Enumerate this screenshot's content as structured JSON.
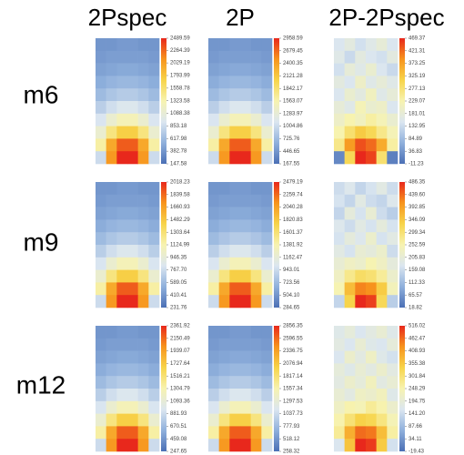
{
  "columns": [
    "2Pspec",
    "2P",
    "2P-2Pspec"
  ],
  "rows": [
    "m6",
    "m9",
    "m12"
  ],
  "colormap": [
    "#4a6fb5",
    "#8fb0dc",
    "#dbe6f0",
    "#f7f3b0",
    "#f7d44a",
    "#f7941d",
    "#e8281c"
  ],
  "chart_data": [
    {
      "type": "heatmap",
      "z": [
        [
          382,
          382,
          406,
          406,
          382,
          382
        ],
        [
          406,
          429,
          429,
          429,
          429,
          406
        ],
        [
          452,
          476,
          499,
          499,
          476,
          452
        ],
        [
          523,
          570,
          593,
          593,
          570,
          523
        ],
        [
          616,
          687,
          734,
          734,
          687,
          616
        ],
        [
          757,
          874,
          944,
          944,
          874,
          757
        ],
        [
          921,
          1132,
          1272,
          1272,
          1132,
          921
        ],
        [
          1132,
          1506,
          1741,
          1741,
          1506,
          1132
        ],
        [
          1366,
          1975,
          2303,
          2303,
          1975,
          1366
        ],
        [
          851,
          2068,
          2490,
          2490,
          2068,
          851
        ]
      ],
      "zticks": [
        2489.59,
        2264.39,
        2029.19,
        1793.99,
        1558.78,
        1323.58,
        1088.38,
        853.18,
        617.98,
        382.78,
        147.58
      ]
    },
    {
      "type": "heatmap",
      "z": [
        [
          447,
          447,
          475,
          475,
          447,
          447
        ],
        [
          475,
          502,
          502,
          502,
          502,
          475
        ],
        [
          530,
          558,
          586,
          586,
          558,
          530
        ],
        [
          614,
          670,
          698,
          698,
          670,
          614
        ],
        [
          726,
          810,
          865,
          865,
          810,
          726
        ],
        [
          893,
          1033,
          1116,
          1116,
          1033,
          893
        ],
        [
          1089,
          1340,
          1507,
          1507,
          1340,
          1089
        ],
        [
          1340,
          1786,
          2065,
          2065,
          1786,
          1340
        ],
        [
          1619,
          2345,
          2735,
          2735,
          2345,
          1619
        ],
        [
          1005,
          2456,
          2959,
          2959,
          2456,
          1005
        ]
      ],
      "zticks": [
        2958.59,
        2679.45,
        2400.35,
        2121.28,
        1842.17,
        1563.07,
        1283.97,
        1004.86,
        725.76,
        446.65,
        167.55
      ]
    },
    {
      "type": "heatmap",
      "z": [
        [
          150,
          170,
          140,
          160,
          180,
          150
        ],
        [
          160,
          130,
          170,
          150,
          140,
          170
        ],
        [
          140,
          180,
          160,
          190,
          150,
          130
        ],
        [
          170,
          150,
          200,
          160,
          180,
          160
        ],
        [
          150,
          190,
          170,
          210,
          160,
          180
        ],
        [
          180,
          160,
          220,
          190,
          200,
          150
        ],
        [
          200,
          230,
          210,
          240,
          220,
          190
        ],
        [
          230,
          280,
          320,
          300,
          260,
          220
        ],
        [
          260,
          380,
          440,
          420,
          360,
          240
        ],
        [
          20,
          300,
          469,
          450,
          280,
          10
        ]
      ],
      "zticks": [
        469.37,
        421.31,
        373.25,
        325.19,
        277.13,
        229.07,
        181.01,
        132.95,
        84.89,
        36.83,
        -11.23
      ]
    },
    {
      "type": "heatmap",
      "z": [
        [
          410,
          410,
          428,
          428,
          410,
          410
        ],
        [
          428,
          446,
          446,
          446,
          446,
          428
        ],
        [
          464,
          482,
          500,
          500,
          482,
          464
        ],
        [
          518,
          553,
          571,
          571,
          553,
          518
        ],
        [
          589,
          643,
          678,
          678,
          643,
          589
        ],
        [
          696,
          785,
          839,
          839,
          785,
          696
        ],
        [
          821,
          982,
          1089,
          1089,
          982,
          821
        ],
        [
          982,
          1268,
          1446,
          1446,
          1268,
          982
        ],
        [
          1161,
          1625,
          1875,
          1875,
          1625,
          1161
        ],
        [
          768,
          1696,
          2018,
          2018,
          1696,
          768
        ]
      ],
      "zticks": [
        2018.23,
        1839.58,
        1660.93,
        1482.29,
        1303.64,
        1124.99,
        946.35,
        {
          "value": 767.7,
          "label": "767.70"
        },
        589.05,
        410.41,
        231.76
      ]
    },
    {
      "type": "heatmap",
      "z": [
        [
          504,
          504,
          526,
          526,
          504,
          504
        ],
        [
          526,
          548,
          548,
          548,
          548,
          526
        ],
        [
          570,
          592,
          614,
          614,
          592,
          570
        ],
        [
          636,
          680,
          702,
          702,
          680,
          636
        ],
        [
          724,
          789,
          833,
          833,
          789,
          724
        ],
        [
          855,
          965,
          1031,
          1031,
          965,
          855
        ],
        [
          1009,
          1206,
          1338,
          1338,
          1206,
          1009
        ],
        [
          1206,
          1558,
          1777,
          1777,
          1558,
          1206
        ],
        [
          1426,
          1997,
          2304,
          2304,
          1997,
          1426
        ],
        [
          943,
          2085,
          2479,
          2479,
          2085,
          943
        ]
      ],
      "zticks": [
        2479.19,
        2259.74,
        2040.28,
        1820.83,
        1601.37,
        1381.92,
        1162.47,
        943.01,
        723.56,
        {
          "value": 504.1,
          "label": "504.10"
        },
        284.65
      ]
    },
    {
      "type": "heatmap",
      "z": [
        [
          160,
          180,
          150,
          170,
          190,
          160
        ],
        [
          170,
          150,
          190,
          160,
          150,
          180
        ],
        [
          150,
          200,
          170,
          210,
          160,
          140
        ],
        [
          180,
          160,
          190,
          170,
          200,
          170
        ],
        [
          170,
          200,
          180,
          220,
          170,
          190
        ],
        [
          190,
          170,
          210,
          200,
          220,
          160
        ],
        [
          210,
          230,
          220,
          250,
          230,
          200
        ],
        [
          230,
          280,
          310,
          300,
          270,
          220
        ],
        [
          250,
          360,
          420,
          410,
          340,
          240
        ],
        [
          150,
          330,
          486,
          470,
          320,
          140
        ]
      ],
      "zticks": [
        486.35,
        {
          "value": 439.6,
          "label": "439.60"
        },
        392.85,
        346.09,
        299.34,
        252.59,
        205.83,
        159.08,
        112.33,
        65.57,
        18.82
      ]
    },
    {
      "type": "heatmap",
      "z": [
        [
          459,
          459,
          480,
          480,
          459,
          459
        ],
        [
          480,
          501,
          501,
          501,
          501,
          480
        ],
        [
          522,
          544,
          565,
          565,
          544,
          522
        ],
        [
          586,
          628,
          649,
          649,
          628,
          586
        ],
        [
          670,
          734,
          776,
          776,
          734,
          670
        ],
        [
          797,
          903,
          966,
          966,
          903,
          797
        ],
        [
          945,
          1136,
          1262,
          1262,
          1136,
          945
        ],
        [
          1136,
          1474,
          1685,
          1685,
          1474,
          1136
        ],
        [
          1347,
          1897,
          2193,
          2193,
          1897,
          1347
        ],
        [
          882,
          1981,
          2362,
          2362,
          1981,
          882
        ]
      ],
      "zticks": [
        2361.92,
        2150.49,
        1939.07,
        1727.64,
        1516.21,
        1304.79,
        1093.36,
        881.93,
        670.51,
        459.08,
        247.65
      ]
    },
    {
      "type": "heatmap",
      "z": [
        [
          518,
          518,
          544,
          544,
          518,
          518
        ],
        [
          544,
          570,
          570,
          570,
          570,
          544
        ],
        [
          596,
          622,
          648,
          648,
          622,
          596
        ],
        [
          674,
          726,
          752,
          752,
          726,
          674
        ],
        [
          778,
          856,
          908,
          908,
          856,
          778
        ],
        [
          934,
          1064,
          1141,
          1141,
          1064,
          934
        ],
        [
          1116,
          1349,
          1505,
          1505,
          1349,
          1116
        ],
        [
          1349,
          1765,
          2025,
          2025,
          1765,
          1349
        ],
        [
          1609,
          2285,
          2648,
          2648,
          2285,
          1609
        ],
        [
          1038,
          2389,
          2856,
          2856,
          2389,
          1038
        ]
      ],
      "zticks": [
        2856.35,
        2596.55,
        2336.75,
        2076.94,
        1817.14,
        1557.34,
        1297.53,
        1037.73,
        777.93,
        518.12,
        258.32
      ]
    },
    {
      "type": "heatmap",
      "z": [
        [
          170,
          190,
          160,
          180,
          200,
          170
        ],
        [
          180,
          160,
          200,
          170,
          160,
          190
        ],
        [
          160,
          210,
          180,
          220,
          170,
          150
        ],
        [
          190,
          170,
          200,
          180,
          210,
          180
        ],
        [
          180,
          210,
          190,
          230,
          180,
          200
        ],
        [
          200,
          180,
          220,
          210,
          230,
          170
        ],
        [
          220,
          250,
          240,
          270,
          250,
          210
        ],
        [
          250,
          300,
          340,
          330,
          290,
          240
        ],
        [
          270,
          390,
          460,
          450,
          370,
          260
        ],
        [
          160,
          360,
          516,
          500,
          350,
          150
        ]
      ],
      "zticks": [
        516.02,
        462.47,
        408.93,
        355.38,
        301.84,
        248.29,
        194.75,
        {
          "value": 141.2,
          "label": "141.20"
        },
        87.66,
        34.11,
        -19.43
      ]
    }
  ]
}
